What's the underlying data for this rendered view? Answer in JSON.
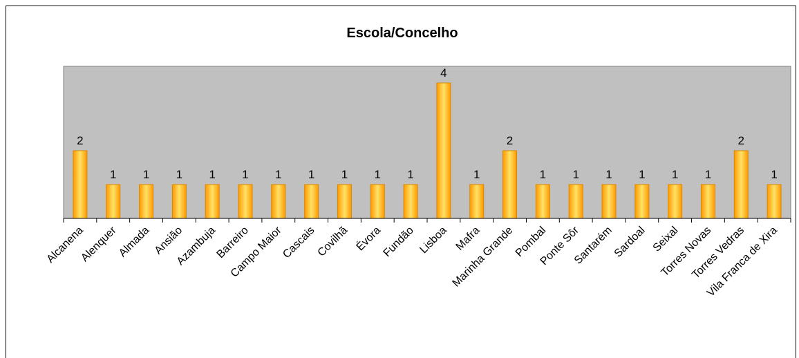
{
  "chart_data": {
    "type": "bar",
    "title": "Escola/Concelho",
    "xlabel": "",
    "ylabel": "",
    "ylim": [
      0,
      4
    ],
    "grid": false,
    "legend": "none",
    "categories": [
      "Alcanena",
      "Alenquer",
      "Almada",
      "Ansião",
      "Azambuja",
      "Barreiro",
      "Campo Maior",
      "Cascais",
      "Covilhã",
      "Évora",
      "Fundão",
      "Lisboa",
      "Mafra",
      "Marinha Grande",
      "Pombal",
      "Ponte Sôr",
      "Santarém",
      "Sardoal",
      "Seixal",
      "Torres Novas",
      "Torres Vedras",
      "Vila Franca de Xira"
    ],
    "values": [
      2,
      1,
      1,
      1,
      1,
      1,
      1,
      1,
      1,
      1,
      1,
      4,
      1,
      2,
      1,
      1,
      1,
      1,
      1,
      1,
      2,
      1
    ],
    "colors": {
      "plot_background": "#c0c0c0",
      "bar_edge": "#d98a00",
      "bar_light": "#ffe266",
      "bar_dark": "#ff9900"
    }
  }
}
